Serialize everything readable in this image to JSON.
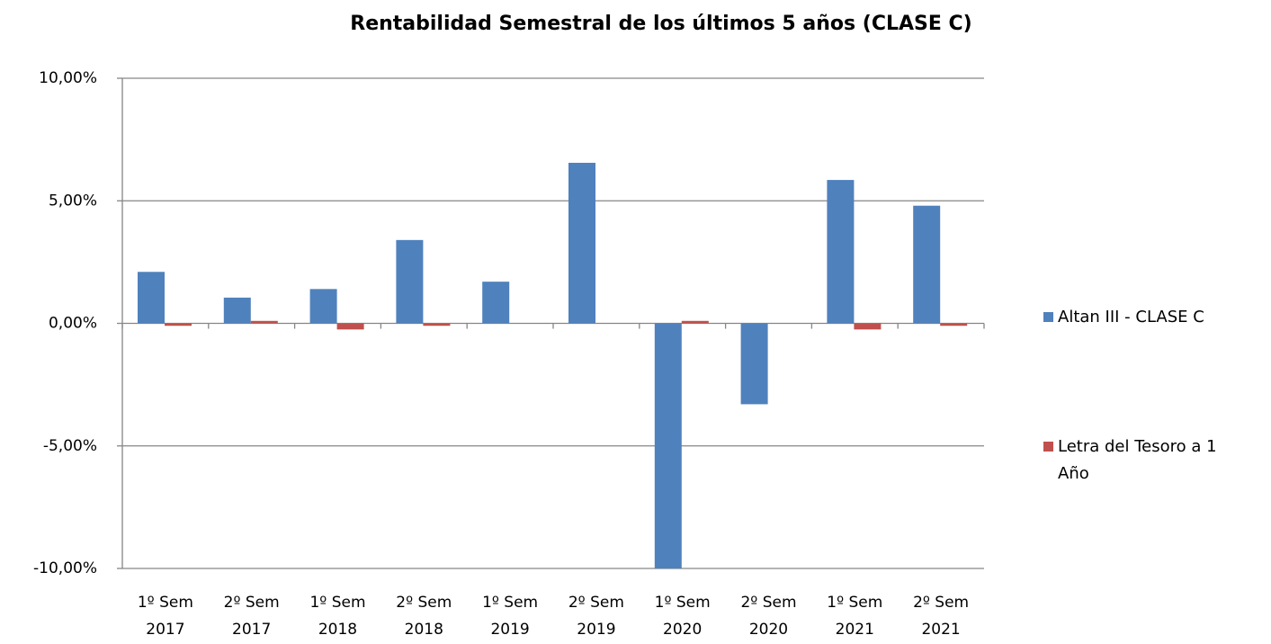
{
  "chart_data": {
    "type": "bar",
    "title": "Rentabilidad Semestral de los últimos 5 años (CLASE C)",
    "categories": [
      "1º Sem 2017",
      "2º Sem 2017",
      "1º Sem 2018",
      "2º Sem 2018",
      "1º Sem 2019",
      "2º Sem 2019",
      "1º Sem 2020",
      "2º Sem 2020",
      "1º Sem 2021",
      "2º Sem 2021"
    ],
    "series": [
      {
        "name": "Altan III - CLASE C",
        "color": "#4f81bd",
        "values": [
          2.1,
          1.05,
          1.4,
          3.4,
          1.7,
          6.55,
          -10.0,
          -3.3,
          5.85,
          4.8
        ]
      },
      {
        "name": "Letra del Tesoro a 1 Año",
        "color": "#c0504d",
        "values": [
          -0.1,
          0.1,
          -0.25,
          -0.1,
          0,
          0,
          0.1,
          0,
          -0.25,
          -0.1
        ]
      }
    ],
    "ylim": [
      -10,
      10
    ],
    "yticks": [
      {
        "value": -10,
        "label": "-10,00%"
      },
      {
        "value": -5,
        "label": "-5,00%"
      },
      {
        "value": 0,
        "label": "0,00%"
      },
      {
        "value": 5,
        "label": "5,00%"
      },
      {
        "value": 10,
        "label": "10,00%"
      }
    ],
    "grid": true
  }
}
